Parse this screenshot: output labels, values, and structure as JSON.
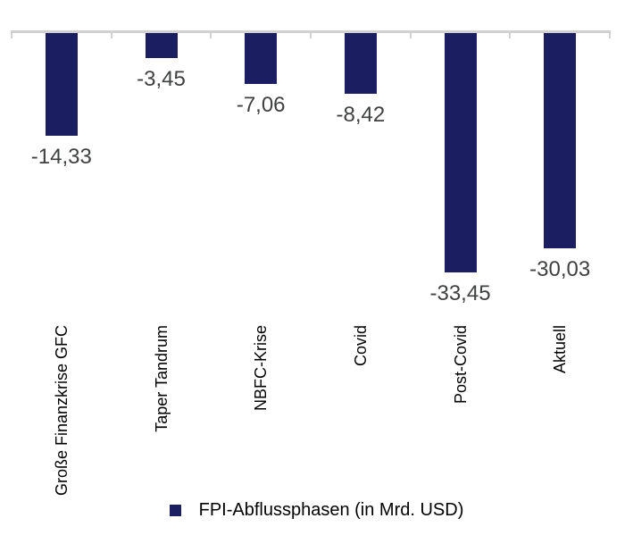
{
  "figure": {
    "background": "#ffffff"
  },
  "chart_data": {
    "type": "bar",
    "title": "",
    "xlabel": "",
    "ylabel": "",
    "categories": [
      "Große Finanzkrise GFC",
      "Taper Tandrum",
      "NBFC-Krise",
      "Covid",
      "Post-Covid",
      "Aktuell"
    ],
    "series": [
      {
        "name": "FPI-Abflussphasen (in Mrd. USD)",
        "values": [
          -14.33,
          -3.45,
          -7.06,
          -8.42,
          -33.45,
          -30.03
        ],
        "value_labels": [
          "-14,33",
          "-3,45",
          "-7,06",
          "-8,42",
          "-33,45",
          "-30,03"
        ]
      }
    ],
    "legend": "FPI-Abflussphasen (in Mrd. USD)",
    "legend_position": "bottom",
    "ylim": [
      -33.45,
      0
    ],
    "grid": false,
    "orientation": "vertical",
    "baseline": "top",
    "x_tick_style": "category-boundaries",
    "category_label_rotation": -90,
    "colors": {
      "bar": "#1b1f62",
      "axis": "#d1d1d1",
      "value_label": "#3f4041",
      "category_label": "#000000"
    }
  }
}
